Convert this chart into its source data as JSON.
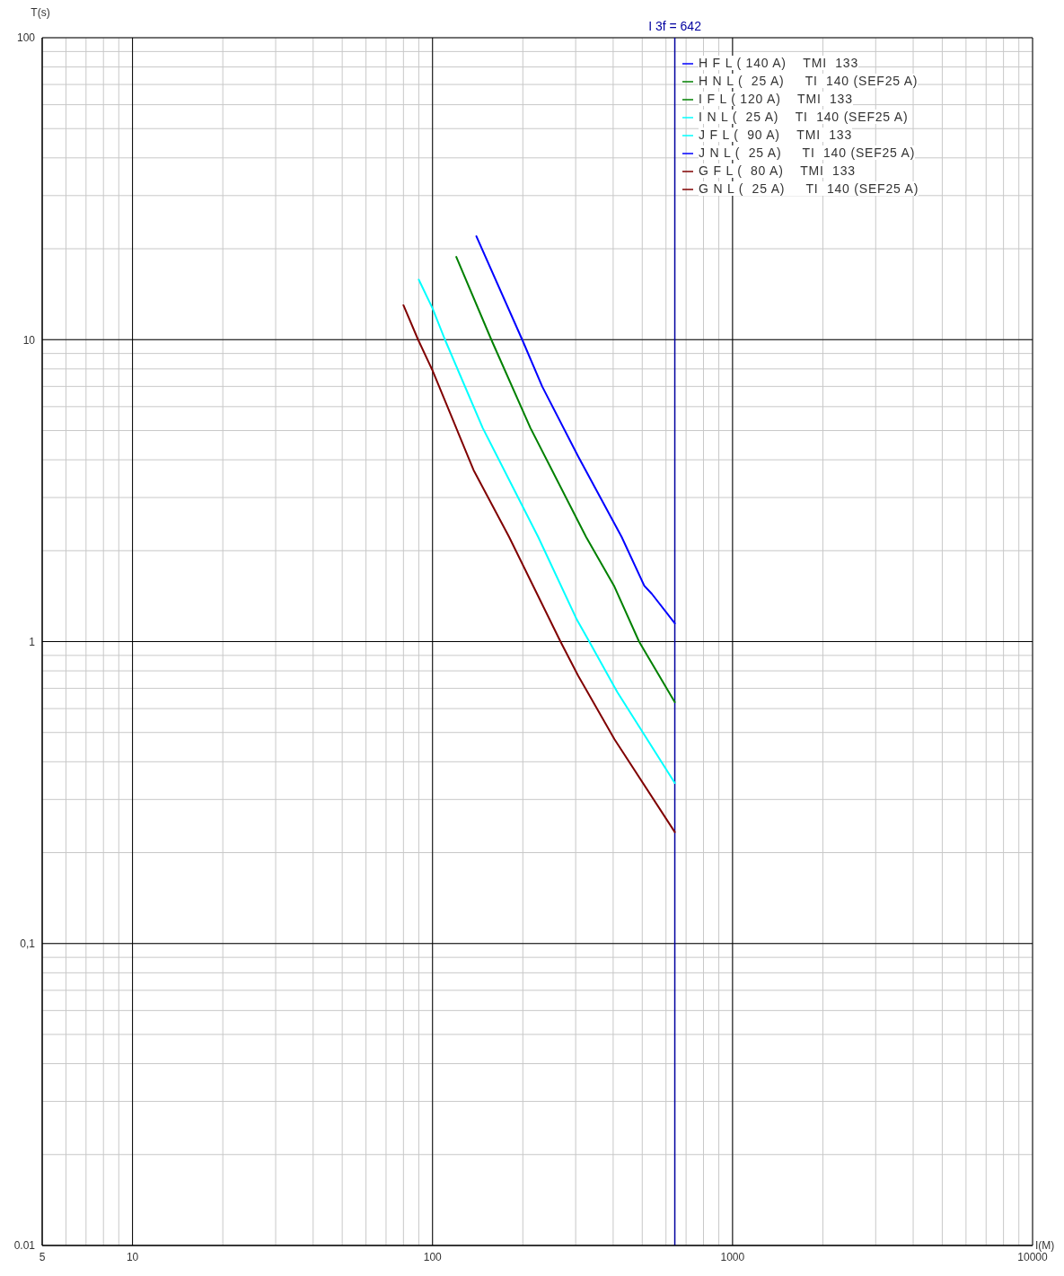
{
  "chart_data": {
    "type": "line",
    "ylabel": "T(s)",
    "xlabel": "I(M)",
    "log": "xy",
    "xlim": [
      5,
      10000
    ],
    "ylim": [
      0.01,
      100
    ],
    "xticks": [
      5,
      {
        "value": 6,
        "label": null
      },
      {
        "value": 7,
        "label": null
      },
      {
        "value": 8,
        "label": null
      },
      {
        "value": 9,
        "label": null
      },
      10,
      {
        "value": 20,
        "label": null
      },
      {
        "value": 30,
        "label": null
      },
      {
        "value": 40,
        "label": null
      },
      {
        "value": 50,
        "label": null
      },
      {
        "value": 60,
        "label": null
      },
      {
        "value": 70,
        "label": null
      },
      {
        "value": 80,
        "label": null
      },
      {
        "value": 90,
        "label": null
      },
      100,
      {
        "value": 200,
        "label": null
      },
      {
        "value": 300,
        "label": null
      },
      {
        "value": 400,
        "label": null
      },
      {
        "value": 500,
        "label": null
      },
      {
        "value": 600,
        "label": null
      },
      {
        "value": 700,
        "label": null
      },
      {
        "value": 800,
        "label": null
      },
      {
        "value": 900,
        "label": null
      },
      1000,
      {
        "value": 2000,
        "label": null
      },
      {
        "value": 3000,
        "label": null
      },
      {
        "value": 4000,
        "label": null
      },
      {
        "value": 5000,
        "label": null
      },
      {
        "value": 6000,
        "label": null
      },
      {
        "value": 7000,
        "label": null
      },
      {
        "value": 8000,
        "label": null
      },
      {
        "value": 9000,
        "label": null
      },
      10000
    ],
    "yticks": [
      0.01,
      {
        "value": 0.02,
        "label": null
      },
      {
        "value": 0.03,
        "label": null
      },
      {
        "value": 0.04,
        "label": null
      },
      {
        "value": 0.05,
        "label": null
      },
      {
        "value": 0.06,
        "label": null
      },
      {
        "value": 0.07,
        "label": null
      },
      {
        "value": 0.08,
        "label": null
      },
      {
        "value": 0.09,
        "label": null
      },
      {
        "value": 0.1,
        "label": "0,1"
      },
      {
        "value": 0.2,
        "label": null
      },
      {
        "value": 0.3,
        "label": null
      },
      {
        "value": 0.4,
        "label": null
      },
      {
        "value": 0.5,
        "label": null
      },
      {
        "value": 0.6,
        "label": null
      },
      {
        "value": 0.7,
        "label": null
      },
      {
        "value": 0.8,
        "label": null
      },
      {
        "value": 0.9,
        "label": null
      },
      1,
      {
        "value": 2,
        "label": null
      },
      {
        "value": 3,
        "label": null
      },
      {
        "value": 4,
        "label": null
      },
      {
        "value": 5,
        "label": null
      },
      {
        "value": 6,
        "label": null
      },
      {
        "value": 7,
        "label": null
      },
      {
        "value": 8,
        "label": null
      },
      {
        "value": 9,
        "label": null
      },
      10,
      {
        "value": 20,
        "label": null
      },
      {
        "value": 30,
        "label": null
      },
      {
        "value": 40,
        "label": null
      },
      {
        "value": 50,
        "label": null
      },
      {
        "value": 60,
        "label": null
      },
      {
        "value": 70,
        "label": null
      },
      {
        "value": 80,
        "label": null
      },
      {
        "value": 90,
        "label": null
      },
      100
    ],
    "grid": true,
    "legend": "top right",
    "line_style": "solid",
    "ref_lines": [
      {
        "axis": "x",
        "value": 642,
        "label": "I 3f = 642",
        "color": "#0000a0"
      }
    ],
    "series": [
      {
        "name": "H F L ( 140 A)    TMI  133",
        "color": "#0000ff",
        "x": [
          140,
          199,
          232,
          306,
          427,
          508,
          538,
          642
        ],
        "values": [
          22,
          10,
          7.0,
          4.1,
          2.22,
          1.53,
          1.44,
          1.15
        ]
      },
      {
        "name": "H N L (  25 A)     TI  140 (SEF25 A)",
        "color": "#008000"
      },
      {
        "name": "I F L ( 120 A)    TMI  133",
        "color": "#008000",
        "x": [
          120,
          157,
          212,
          325,
          404,
          488,
          642
        ],
        "values": [
          18.8,
          10,
          5.1,
          2.22,
          1.52,
          1.0,
          0.63
        ]
      },
      {
        "name": "I N L (  25 A)    TI  140 (SEF25 A)",
        "color": "#00ffff"
      },
      {
        "name": "J F L (  90 A)    TMI  133",
        "color": "#00ffff",
        "x": [
          90,
          100,
          110,
          147,
          225,
          303,
          333,
          413,
          642
        ],
        "values": [
          15.8,
          12.7,
          10,
          5.1,
          2.22,
          1.18,
          1.0,
          0.68,
          0.34
        ]
      },
      {
        "name": "J N L (  25 A)     TI  140 (SEF25 A)",
        "color": "#0000ff"
      },
      {
        "name": "G F L (  80 A)    TMI  133",
        "color": "#800000",
        "x": [
          80,
          89.5,
          100,
          137,
          180,
          267,
          306,
          404,
          642
        ],
        "values": [
          13,
          10,
          7.9,
          3.7,
          2.22,
          1.0,
          0.77,
          0.475,
          0.234
        ]
      },
      {
        "name": "G N L (  25 A)     TI  140 (SEF25 A)",
        "color": "#800000"
      }
    ]
  }
}
